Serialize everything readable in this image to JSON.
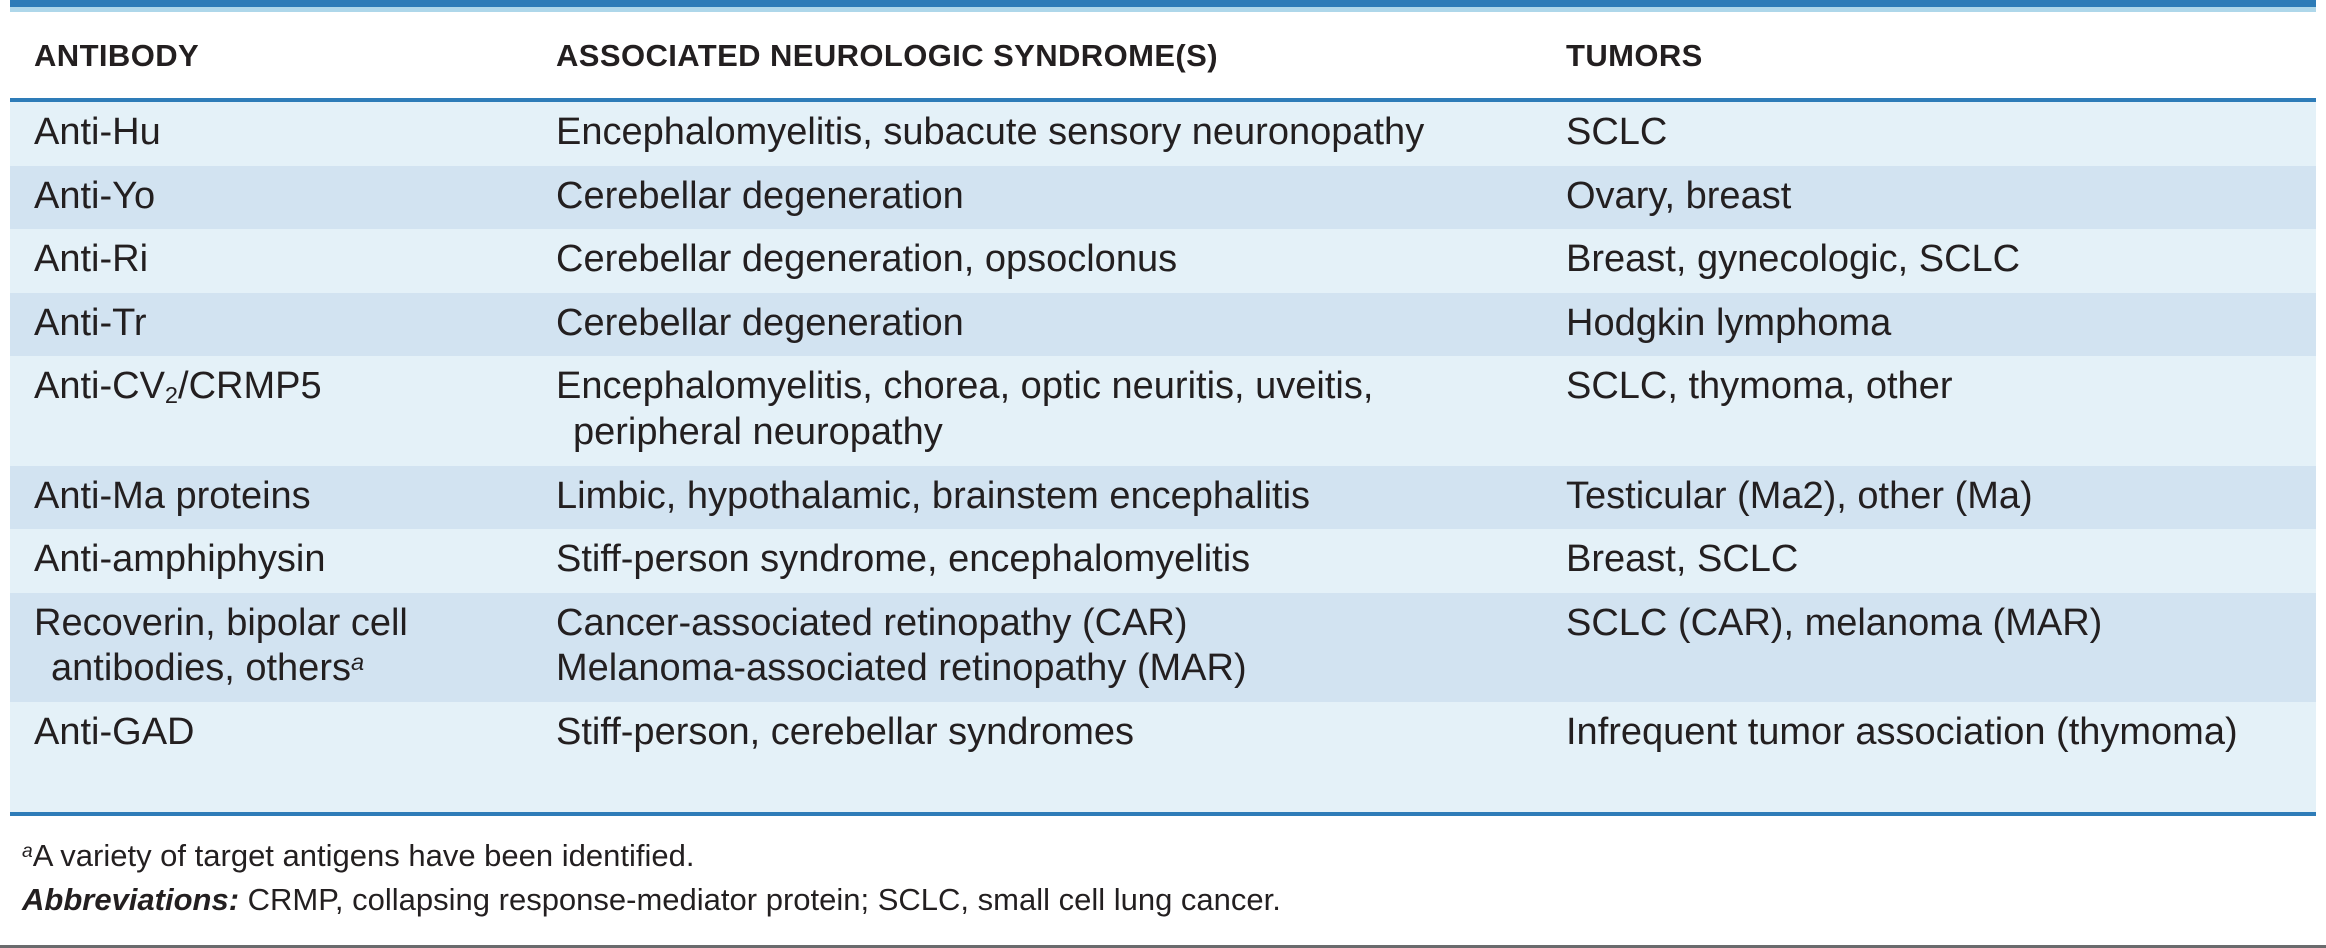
{
  "page": {
    "colors": {
      "accent_blue": "#2e7cb8",
      "accent_blue_light": "#aed7ea",
      "row_light": "#e4f1f8",
      "row_dark": "#d2e3f1",
      "text": "#231f20",
      "bottom_rule_gray": "#6a6b6d"
    }
  },
  "table": {
    "headers": [
      "ANTIBODY",
      "ASSOCIATED NEUROLOGIC SYNDROME(S)",
      "TUMORS"
    ],
    "rows": [
      {
        "antibody": [
          {
            "parts": [
              {
                "t": "Anti-Hu"
              }
            ]
          }
        ],
        "syndromes": [
          {
            "parts": [
              {
                "t": "Encephalomyelitis, subacute sensory neuronopathy"
              }
            ]
          }
        ],
        "tumors": [
          {
            "parts": [
              {
                "t": "SCLC"
              }
            ]
          }
        ]
      },
      {
        "antibody": [
          {
            "parts": [
              {
                "t": "Anti-Yo"
              }
            ]
          }
        ],
        "syndromes": [
          {
            "parts": [
              {
                "t": "Cerebellar degeneration"
              }
            ]
          }
        ],
        "tumors": [
          {
            "parts": [
              {
                "t": "Ovary, breast"
              }
            ]
          }
        ]
      },
      {
        "antibody": [
          {
            "parts": [
              {
                "t": "Anti-Ri"
              }
            ]
          }
        ],
        "syndromes": [
          {
            "parts": [
              {
                "t": "Cerebellar degeneration, opsoclonus"
              }
            ]
          }
        ],
        "tumors": [
          {
            "parts": [
              {
                "t": "Breast, gynecologic, SCLC"
              }
            ]
          }
        ]
      },
      {
        "antibody": [
          {
            "parts": [
              {
                "t": "Anti-Tr"
              }
            ]
          }
        ],
        "syndromes": [
          {
            "parts": [
              {
                "t": "Cerebellar degeneration"
              }
            ]
          }
        ],
        "tumors": [
          {
            "parts": [
              {
                "t": "Hodgkin lymphoma"
              }
            ]
          }
        ]
      },
      {
        "antibody": [
          {
            "parts": [
              {
                "t": "Anti-CV"
              },
              {
                "t": "2",
                "s": "sub"
              },
              {
                "t": "/CRMP5"
              }
            ]
          }
        ],
        "syndromes": [
          {
            "parts": [
              {
                "t": "Encephalomyelitis, chorea, optic neuritis, uveitis,"
              }
            ]
          },
          {
            "indent": true,
            "parts": [
              {
                "t": "peripheral neuropathy"
              }
            ]
          }
        ],
        "tumors": [
          {
            "parts": [
              {
                "t": "SCLC, thymoma, other"
              }
            ]
          }
        ]
      },
      {
        "antibody": [
          {
            "parts": [
              {
                "t": "Anti-Ma proteins"
              }
            ]
          }
        ],
        "syndromes": [
          {
            "parts": [
              {
                "t": "Limbic, hypothalamic, brainstem encephalitis"
              }
            ]
          }
        ],
        "tumors": [
          {
            "parts": [
              {
                "t": "Testicular (Ma2), other (Ma)"
              }
            ]
          }
        ]
      },
      {
        "antibody": [
          {
            "parts": [
              {
                "t": "Anti-amphiphysin"
              }
            ]
          }
        ],
        "syndromes": [
          {
            "parts": [
              {
                "t": "Stiff-person syndrome, encephalomyelitis"
              }
            ]
          }
        ],
        "tumors": [
          {
            "parts": [
              {
                "t": "Breast, SCLC"
              }
            ]
          }
        ]
      },
      {
        "antibody": [
          {
            "parts": [
              {
                "t": "Recoverin, bipolar cell"
              }
            ]
          },
          {
            "indent": true,
            "parts": [
              {
                "t": "antibodies, others"
              },
              {
                "t": "a",
                "s": "sup"
              }
            ]
          }
        ],
        "syndromes": [
          {
            "parts": [
              {
                "t": "Cancer-associated retinopathy (CAR)"
              }
            ]
          },
          {
            "parts": [
              {
                "t": "Melanoma-associated retinopathy (MAR)"
              }
            ]
          }
        ],
        "tumors": [
          {
            "parts": [
              {
                "t": "SCLC (CAR), melanoma (MAR)"
              }
            ]
          }
        ]
      },
      {
        "tall": true,
        "antibody": [
          {
            "parts": [
              {
                "t": "Anti-GAD"
              }
            ]
          }
        ],
        "syndromes": [
          {
            "parts": [
              {
                "t": "Stiff-person, cerebellar syndromes"
              }
            ]
          }
        ],
        "tumors": [
          {
            "parts": [
              {
                "t": "Infrequent tumor association (thymoma)"
              }
            ]
          }
        ]
      }
    ]
  },
  "footnotes": {
    "note_marker": "a",
    "note_text": "A variety of target antigens have been identified.",
    "abbreviations_label": "Abbreviations:",
    "abbreviations_text": " CRMP, collapsing response-mediator protein; SCLC, small cell lung cancer."
  }
}
